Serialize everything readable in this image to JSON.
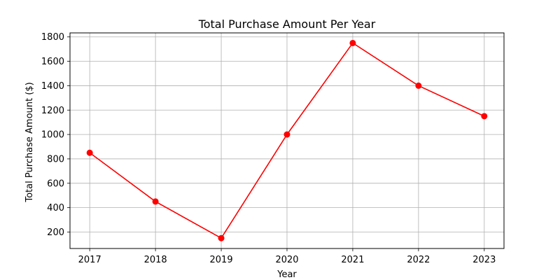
{
  "chart_data": {
    "type": "line",
    "title": "Total Purchase Amount Per Year",
    "xlabel": "Year",
    "ylabel": "Total Purchase Amount ($)",
    "x": [
      2017,
      2018,
      2019,
      2020,
      2021,
      2022,
      2023
    ],
    "series": [
      {
        "values": [
          850,
          450,
          150,
          1000,
          1750,
          1400,
          1150
        ],
        "color": "#ff0000",
        "marker": "circle"
      }
    ],
    "x_ticks": [
      "2017",
      "2018",
      "2019",
      "2020",
      "2021",
      "2022",
      "2023"
    ],
    "y_ticks": [
      200,
      400,
      600,
      800,
      1000,
      1200,
      1400,
      1600,
      1800
    ],
    "xlim": [
      2016.7,
      2023.3
    ],
    "ylim": [
      65,
      1833
    ],
    "grid": true,
    "legend": "none"
  }
}
